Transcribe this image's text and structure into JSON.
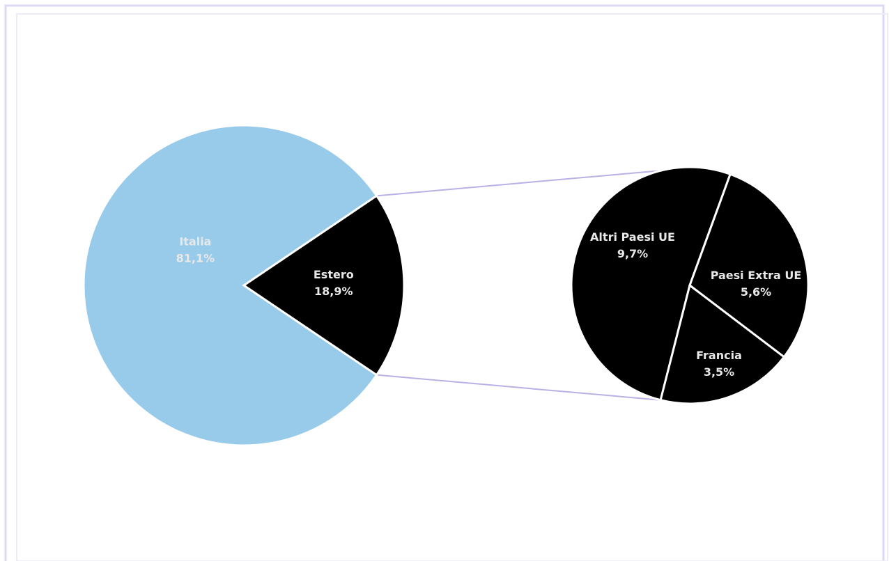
{
  "chart_data": {
    "type": "pie",
    "main_pie": {
      "slices": [
        {
          "label": "Italia",
          "value_label": "81,1%",
          "value": 81.1
        },
        {
          "label": "Estero",
          "value_label": "18,9%",
          "value": 18.9
        }
      ]
    },
    "sub_pie": {
      "slices": [
        {
          "label": "Altri Paesi UE",
          "value_label": "9,7%",
          "value": 9.7
        },
        {
          "label": "Paesi Extra UE",
          "value_label": "5,6%",
          "value": 5.6
        },
        {
          "label": "Francia",
          "value_label": "3,5%",
          "value": 3.5
        }
      ]
    },
    "colors": {
      "main_large": "#98cbea",
      "main_small": "#000000",
      "sub": "#000000",
      "connector": "#b9b0e6",
      "border": "#dcd8f4"
    }
  }
}
